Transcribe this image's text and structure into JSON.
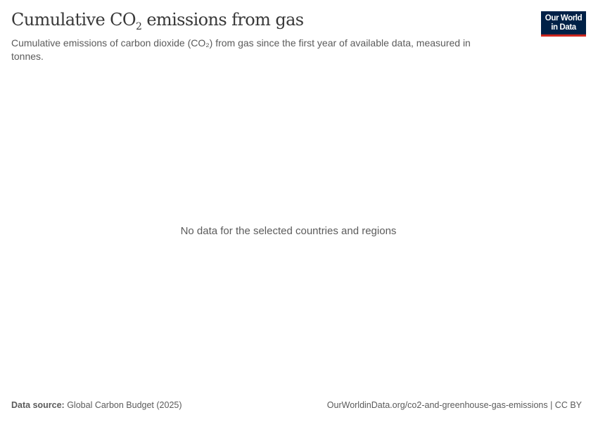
{
  "chart_data": {
    "type": "line",
    "title_prefix": "Cumulative CO",
    "title_sub": "2",
    "title_suffix": " emissions from gas",
    "subtitle": "Cumulative emissions of carbon dioxide (CO₂) from gas since the first year of available data, measured in tonnes.",
    "series": [],
    "message": "No data for the selected countries and regions"
  },
  "logo": {
    "line1": "Our World",
    "line2": "in Data",
    "bg_color": "#002147",
    "accent_color": "#ce261e"
  },
  "footer": {
    "source_label": "Data source:",
    "source_value": " Global Carbon Budget (2025)",
    "url": "OurWorldinData.org/co2-and-greenhouse-gas-emissions",
    "separator": " | ",
    "license": "CC BY"
  }
}
